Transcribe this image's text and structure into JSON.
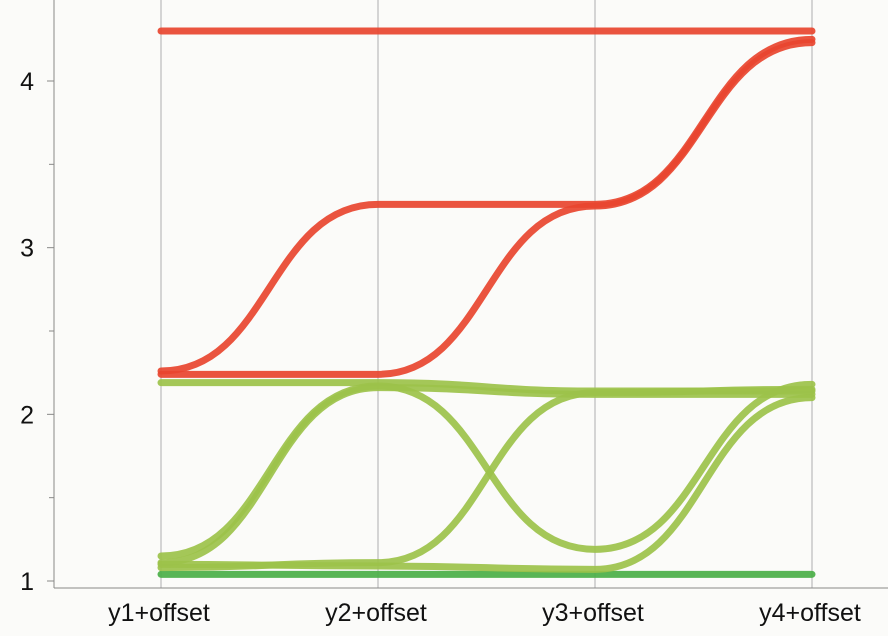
{
  "chart_data": {
    "type": "line",
    "categories": [
      "y1+offset",
      "y2+offset",
      "y3+offset",
      "y4+offset"
    ],
    "ylim": [
      0.98,
      4.47
    ],
    "yticks": [
      1,
      2,
      3,
      4
    ],
    "grid": "vertical lines at each category",
    "curve": "smooth step (sigmoid) between categories",
    "colors": {
      "red": "#e8452f",
      "light_green": "#9cc24a",
      "green": "#4aaf46"
    },
    "series": [
      {
        "color": "red",
        "values": [
          4.3,
          4.3,
          4.3,
          4.3
        ]
      },
      {
        "color": "red",
        "values": [
          2.26,
          3.26,
          3.26,
          4.25
        ]
      },
      {
        "color": "red",
        "values": [
          2.24,
          2.24,
          3.25,
          4.23
        ]
      },
      {
        "color": "light_green",
        "values": [
          2.19,
          2.19,
          2.14,
          2.14
        ]
      },
      {
        "color": "light_green",
        "values": [
          1.15,
          2.17,
          1.19,
          2.18
        ]
      },
      {
        "color": "light_green",
        "values": [
          1.11,
          2.16,
          2.12,
          2.12
        ]
      },
      {
        "color": "light_green",
        "values": [
          1.08,
          1.11,
          2.13,
          2.15
        ]
      },
      {
        "color": "light_green",
        "values": [
          1.1,
          1.09,
          1.07,
          2.1
        ]
      },
      {
        "color": "green",
        "values": [
          1.04,
          1.04,
          1.04,
          1.04
        ]
      }
    ]
  }
}
